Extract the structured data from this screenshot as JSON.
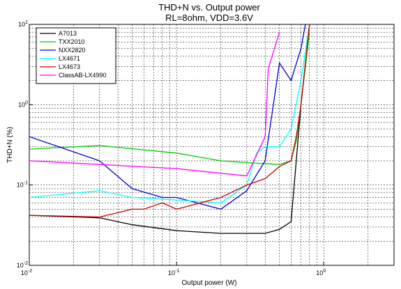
{
  "chart_data": {
    "type": "line",
    "title": "THD+N vs. Output power",
    "subtitle": "RL=8ohm, VDD=3.6V",
    "xlabel": "Output power (W)",
    "ylabel": "THD+N (%)",
    "xscale": "log",
    "yscale": "log",
    "xlim": [
      0.01,
      3
    ],
    "ylim": [
      0.01,
      10
    ],
    "grid": true,
    "legend_position": "top-left",
    "x_ticks": [
      {
        "value": 0.01,
        "base": "10",
        "exp": "-2"
      },
      {
        "value": 0.1,
        "base": "10",
        "exp": "-1"
      },
      {
        "value": 1,
        "base": "10",
        "exp": "0"
      }
    ],
    "y_ticks": [
      {
        "value": 0.01,
        "base": "10",
        "exp": "-2"
      },
      {
        "value": 0.1,
        "base": "10",
        "exp": "-1"
      },
      {
        "value": 1,
        "base": "10",
        "exp": "0"
      },
      {
        "value": 10,
        "base": "10",
        "exp": "1"
      }
    ],
    "series": [
      {
        "name": "A7013",
        "color": "#000000",
        "x": [
          0.01,
          0.03,
          0.05,
          0.1,
          0.2,
          0.4,
          0.5,
          0.6,
          0.65,
          0.7,
          0.8
        ],
        "y": [
          0.042,
          0.039,
          0.032,
          0.027,
          0.025,
          0.025,
          0.028,
          0.035,
          0.2,
          1.0,
          10
        ]
      },
      {
        "name": "TXX2010",
        "color": "#00cc00",
        "x": [
          0.01,
          0.03,
          0.1,
          0.2,
          0.3,
          0.5,
          0.6,
          0.65,
          0.7,
          0.8
        ],
        "y": [
          0.28,
          0.31,
          0.25,
          0.2,
          0.19,
          0.18,
          0.2,
          0.35,
          1.0,
          8
        ]
      },
      {
        "name": "NXX2820",
        "color": "#0000cc",
        "x": [
          0.01,
          0.03,
          0.05,
          0.08,
          0.1,
          0.2,
          0.3,
          0.4,
          0.5,
          0.6,
          0.7,
          0.75
        ],
        "y": [
          0.4,
          0.2,
          0.09,
          0.07,
          0.07,
          0.05,
          0.085,
          0.2,
          3.3,
          2.0,
          5.0,
          10
        ]
      },
      {
        "name": "LX4671",
        "color": "#00ffff",
        "x": [
          0.01,
          0.03,
          0.05,
          0.1,
          0.2,
          0.3,
          0.35,
          0.4,
          0.5,
          0.6,
          0.7,
          0.8
        ],
        "y": [
          0.07,
          0.085,
          0.07,
          0.065,
          0.06,
          0.1,
          0.25,
          0.3,
          0.3,
          0.5,
          2.0,
          10
        ]
      },
      {
        "name": "LX4673",
        "color": "#cc0000",
        "x": [
          0.01,
          0.03,
          0.05,
          0.06,
          0.08,
          0.1,
          0.2,
          0.3,
          0.4,
          0.5,
          0.6,
          0.65,
          0.7,
          0.8
        ],
        "y": [
          0.042,
          0.04,
          0.05,
          0.05,
          0.06,
          0.05,
          0.07,
          0.1,
          0.12,
          0.17,
          0.2,
          0.4,
          1.0,
          10
        ]
      },
      {
        "name": "ClassAB-LX4990",
        "color": "#ff00ff",
        "x": [
          0.01,
          0.03,
          0.1,
          0.2,
          0.3,
          0.4,
          0.42,
          0.5
        ],
        "y": [
          0.2,
          0.18,
          0.16,
          0.14,
          0.13,
          0.4,
          2.8,
          8
        ]
      }
    ]
  }
}
